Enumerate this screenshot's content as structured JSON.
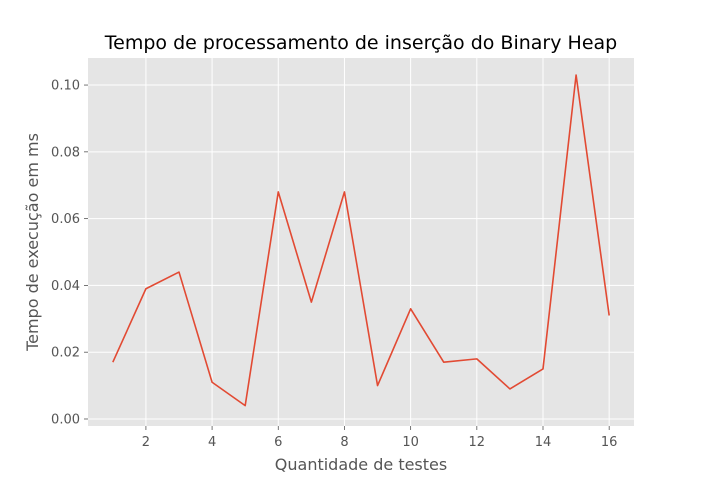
{
  "chart_data": {
    "type": "line",
    "title": "Tempo de processamento de inserção do Binary Heap",
    "xlabel": "Quantidade de testes",
    "ylabel": "Tempo de execução em ms",
    "x": [
      1,
      2,
      3,
      4,
      5,
      6,
      7,
      8,
      9,
      10,
      11,
      12,
      13,
      14,
      15,
      16
    ],
    "series": [
      {
        "values": [
          0.017,
          0.039,
          0.044,
          0.011,
          0.004,
          0.068,
          0.035,
          0.068,
          0.01,
          0.033,
          0.017,
          0.018,
          0.009,
          0.015,
          0.103,
          0.031
        ]
      }
    ],
    "xlim": [
      0.25,
      16.75
    ],
    "ylim": [
      -0.0021,
      0.1081
    ],
    "xticks": [
      2,
      4,
      6,
      8,
      10,
      12,
      14,
      16
    ],
    "xtick_labels": [
      "2",
      "4",
      "6",
      "8",
      "10",
      "12",
      "14",
      "16"
    ],
    "yticks": [
      0.0,
      0.02,
      0.04,
      0.06,
      0.08,
      0.1
    ],
    "ytick_labels": [
      "0.00",
      "0.02",
      "0.04",
      "0.06",
      "0.08",
      "0.10"
    ],
    "grid": true,
    "style": "ggplot",
    "colors": {
      "plot_background": "#e5e5e5",
      "grid": "#ffffff",
      "line": "#e24a33",
      "text": "#555555"
    }
  }
}
